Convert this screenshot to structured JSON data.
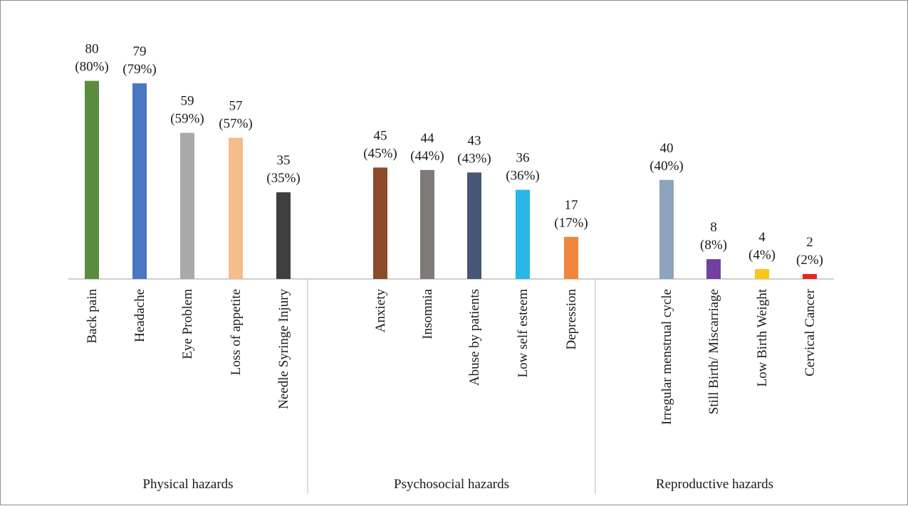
{
  "chart_data": {
    "type": "bar",
    "title": "",
    "xlabel": "",
    "ylabel": "",
    "ylim": [
      0,
      100
    ],
    "grid": false,
    "legend": "none",
    "groups": [
      {
        "name": "Physical hazards",
        "categories": [
          "Back pain",
          "Headache",
          "Eye Problem",
          "Loss of appetite",
          "Needle Syringe Injury"
        ],
        "values": [
          80,
          79,
          59,
          57,
          35
        ],
        "labels": [
          "(80%)",
          "(79%)",
          "(59%)",
          "(57%)",
          "(35%)"
        ],
        "colors": [
          "#5b8c3e",
          "#4a76c3",
          "#a9a9a9",
          "#f5bc8e",
          "#3f3f3f"
        ]
      },
      {
        "name": "Psychosocial hazards",
        "categories": [
          "Anxiety",
          "Insomnia",
          "Abuse by patients",
          "Low self esteem",
          "Depression"
        ],
        "values": [
          45,
          44,
          43,
          36,
          17
        ],
        "labels": [
          "(45%)",
          "(44%)",
          "(43%)",
          "(36%)",
          "(17%)"
        ],
        "colors": [
          "#8b4a2a",
          "#7f7a78",
          "#465775",
          "#29b6e8",
          "#ef873c"
        ]
      },
      {
        "name": "Reproductive hazards",
        "categories": [
          "Irregular menstrual cycle",
          "Still Birth/ Miscarriage",
          "Low Birth Weight",
          "Cervical Cancer"
        ],
        "values": [
          40,
          8,
          4,
          2
        ],
        "labels": [
          "(40%)",
          "(8%)",
          "(4%)",
          "(2%)"
        ],
        "colors": [
          "#8ea3bd",
          "#7140a0",
          "#f9c619",
          "#e8251f"
        ]
      }
    ]
  }
}
